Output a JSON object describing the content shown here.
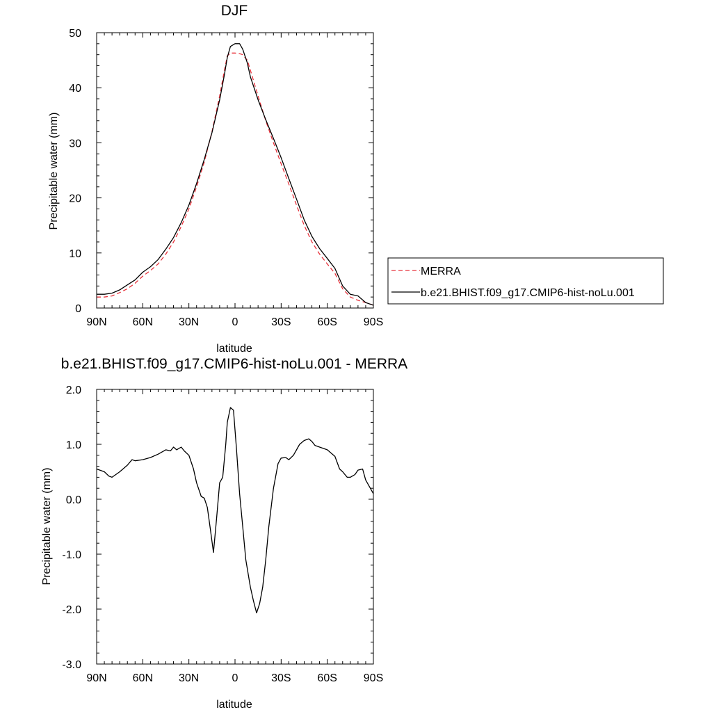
{
  "chart_data": [
    {
      "type": "line",
      "title": "DJF",
      "xlabel": "latitude",
      "ylabel": "Precipitable water (mm)",
      "xlim": [
        90,
        -90
      ],
      "ylim": [
        0,
        50
      ],
      "x_ticks": [
        90,
        60,
        30,
        0,
        -30,
        -60,
        -90
      ],
      "x_tick_labels": [
        "90N",
        "60N",
        "30N",
        "0",
        "30S",
        "60S",
        "90S"
      ],
      "y_ticks": [
        0,
        10,
        20,
        30,
        40,
        50
      ],
      "y_tick_labels": [
        "0",
        "10",
        "20",
        "30",
        "40",
        "50"
      ],
      "legend": {
        "placement": "right"
      },
      "series": [
        {
          "name": "MERRA",
          "color": "#e8313a",
          "dash": "dashed",
          "x": [
            90,
            85,
            80,
            75,
            70,
            65,
            60,
            55,
            50,
            45,
            40,
            35,
            30,
            25,
            20,
            15,
            10,
            7,
            5,
            3,
            0,
            -3,
            -5,
            -8,
            -10,
            -15,
            -20,
            -25,
            -30,
            -35,
            -40,
            -45,
            -50,
            -55,
            -60,
            -65,
            -70,
            -75,
            -80,
            -85,
            -90
          ],
          "y": [
            2.0,
            2.0,
            2.2,
            2.8,
            3.5,
            4.5,
            5.8,
            6.8,
            8.0,
            9.8,
            12.0,
            14.8,
            18.0,
            22.0,
            26.5,
            32.0,
            38.5,
            43.0,
            45.8,
            46.3,
            46.3,
            46.2,
            46.0,
            45.0,
            43.2,
            38.5,
            34.0,
            30.0,
            26.2,
            22.5,
            18.7,
            15.0,
            12.0,
            9.8,
            8.0,
            6.3,
            3.5,
            2.0,
            1.4,
            1.0,
            0.5
          ]
        },
        {
          "name": "b.e21.BHIST.f09_g17.CMIP6-hist-noLu.001",
          "color": "#000000",
          "dash": "solid",
          "x": [
            90,
            85,
            80,
            75,
            70,
            65,
            60,
            55,
            50,
            45,
            40,
            35,
            30,
            25,
            20,
            15,
            10,
            7,
            5,
            3,
            0,
            -3,
            -5,
            -8,
            -10,
            -15,
            -20,
            -25,
            -30,
            -35,
            -40,
            -45,
            -50,
            -55,
            -60,
            -65,
            -70,
            -75,
            -80,
            -85,
            -90
          ],
          "y": [
            2.5,
            2.5,
            2.7,
            3.3,
            4.2,
            5.1,
            6.5,
            7.5,
            8.8,
            10.7,
            12.8,
            15.5,
            18.7,
            22.6,
            27.0,
            31.8,
            37.8,
            42.2,
            45.5,
            47.5,
            48.0,
            48.0,
            47.0,
            44.5,
            42.0,
            37.8,
            34.2,
            30.8,
            27.3,
            23.5,
            19.8,
            16.0,
            13.0,
            10.8,
            9.0,
            7.2,
            4.0,
            2.5,
            2.2,
            1.0,
            0.5
          ]
        }
      ]
    },
    {
      "type": "line",
      "title": "b.e21.BHIST.f09_g17.CMIP6-hist-noLu.001 - MERRA",
      "xlabel": "latitude",
      "ylabel": "Precipitable water (mm)",
      "xlim": [
        90,
        -90
      ],
      "ylim": [
        -3.0,
        2.0
      ],
      "x_ticks": [
        90,
        60,
        30,
        0,
        -30,
        -60,
        -90
      ],
      "x_tick_labels": [
        "90N",
        "60N",
        "30N",
        "0",
        "30S",
        "60S",
        "90S"
      ],
      "y_ticks": [
        -3.0,
        -2.0,
        -1.0,
        0.0,
        1.0,
        2.0
      ],
      "y_tick_labels": [
        "-3.0",
        "-2.0",
        "-1.0",
        "0.0",
        "1.0",
        "2.0"
      ],
      "series": [
        {
          "color": "#000000",
          "dash": "solid",
          "x": [
            90,
            85,
            82,
            80,
            75,
            70,
            67,
            65,
            60,
            55,
            50,
            45,
            42,
            40,
            38,
            35,
            33,
            30,
            27,
            25,
            22,
            20,
            18,
            16,
            14,
            12,
            10,
            8,
            6,
            5,
            3,
            1,
            -1,
            -3,
            -5,
            -7,
            -10,
            -12,
            -14,
            -16,
            -18,
            -20,
            -22,
            -25,
            -28,
            -30,
            -33,
            -35,
            -38,
            -42,
            -45,
            -48,
            -50,
            -52,
            -55,
            -60,
            -65,
            -68,
            -70,
            -73,
            -75,
            -78,
            -80,
            -83,
            -85,
            -88,
            -90
          ],
          "y": [
            0.55,
            0.5,
            0.42,
            0.4,
            0.5,
            0.62,
            0.72,
            0.7,
            0.72,
            0.76,
            0.82,
            0.9,
            0.88,
            0.95,
            0.9,
            0.95,
            0.88,
            0.8,
            0.55,
            0.3,
            0.05,
            0.02,
            -0.15,
            -0.55,
            -0.97,
            -0.35,
            0.3,
            0.4,
            1.0,
            1.4,
            1.67,
            1.62,
            0.9,
            0.1,
            -0.5,
            -1.1,
            -1.6,
            -1.85,
            -2.07,
            -1.9,
            -1.6,
            -1.1,
            -0.5,
            0.2,
            0.65,
            0.75,
            0.76,
            0.72,
            0.8,
            1.0,
            1.07,
            1.1,
            1.05,
            0.98,
            0.95,
            0.9,
            0.78,
            0.55,
            0.5,
            0.4,
            0.4,
            0.45,
            0.53,
            0.55,
            0.35,
            0.2,
            0.1
          ]
        }
      ]
    }
  ]
}
